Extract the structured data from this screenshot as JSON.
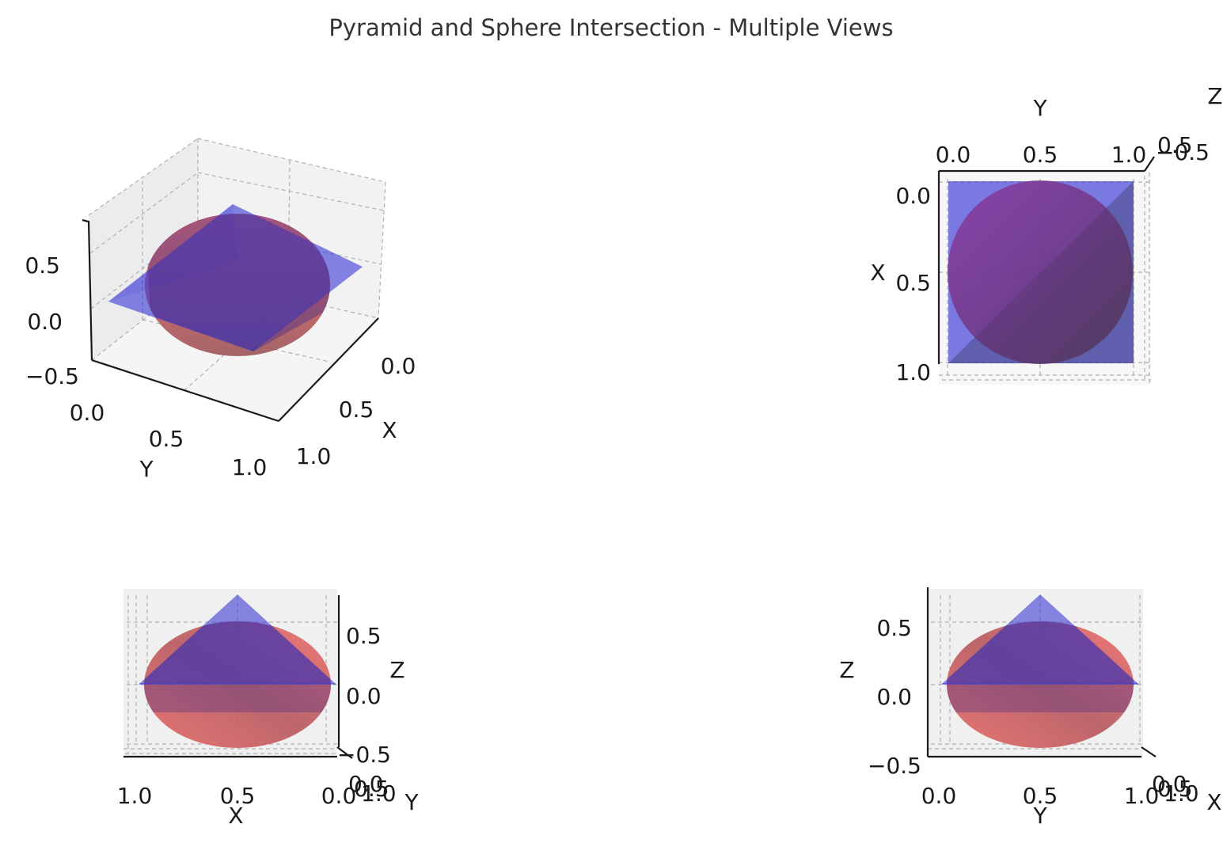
{
  "figure_title": "Pyramid and Sphere Intersection - Multiple Views",
  "colors": {
    "sphere": "#e8605f",
    "sphere_dark": "#9c4d52",
    "pyramid": "#3c3cd6",
    "overlap": "#6a2f86",
    "grid": "#b0b0b0",
    "pane": "#efefef"
  },
  "chart_data": [
    {
      "type": "surface3d",
      "view": "perspective",
      "x_ticks": [
        "0.0",
        "0.5",
        "1.0"
      ],
      "y_ticks": [
        "0.0",
        "0.5",
        "1.0"
      ],
      "z_ticks": [
        "−0.5",
        "0.0",
        "0.5"
      ],
      "xlabel": "X",
      "ylabel": "Y",
      "zlabel": "",
      "xlim": [
        0,
        1
      ],
      "ylim": [
        0,
        1
      ],
      "zlim": [
        -0.5,
        0.75
      ],
      "series": [
        {
          "name": "sphere",
          "center": [
            0.5,
            0.5,
            0.0
          ],
          "radius": 0.5
        },
        {
          "name": "pyramid",
          "base": [
            [
              0,
              0,
              0
            ],
            [
              1,
              0,
              0
            ],
            [
              1,
              1,
              0
            ],
            [
              0,
              1,
              0
            ]
          ],
          "apex": [
            0.5,
            0.5,
            0.75
          ]
        }
      ]
    },
    {
      "type": "surface3d",
      "view": "top",
      "x_ticks": [
        "0.0",
        "0.5",
        "1.0"
      ],
      "y_ticks": [
        "0.0",
        "0.5",
        "1.0"
      ],
      "z_ticks": [
        "0.5",
        "−0.5"
      ],
      "xlabel": "X",
      "ylabel": "Y",
      "zlabel": "Z"
    },
    {
      "type": "surface3d",
      "view": "front",
      "x_ticks": [
        "1.0",
        "0.5",
        "0.0"
      ],
      "y_ticks": [
        "0.0",
        "0.5",
        "1.0"
      ],
      "z_ticks": [
        "0.5",
        "0.0",
        "−0.5"
      ],
      "xlabel": "X",
      "ylabel": "Y",
      "zlabel": "Z"
    },
    {
      "type": "surface3d",
      "view": "side",
      "x_ticks": [
        "0.0",
        "0.5",
        "1.0"
      ],
      "y_ticks": [
        "0.0",
        "0.5",
        "1.0"
      ],
      "z_ticks": [
        "0.5",
        "0.0",
        "−0.5"
      ],
      "xlabel": "X",
      "ylabel": "Y",
      "zlabel": "Z"
    }
  ]
}
